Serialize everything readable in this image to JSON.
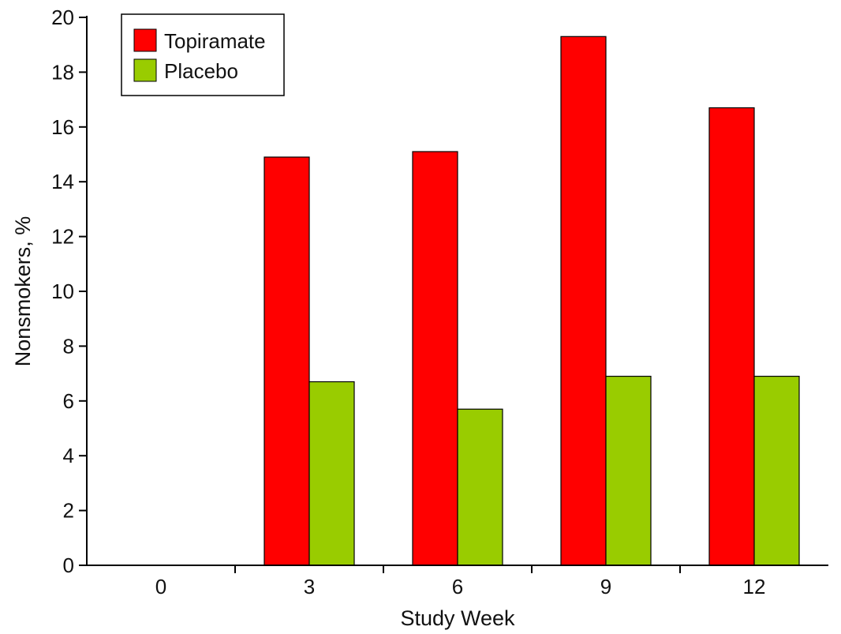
{
  "chart_data": {
    "type": "bar",
    "title": "",
    "xlabel": "Study Week",
    "ylabel": "Nonsmokers, %",
    "categories": [
      "0",
      "3",
      "6",
      "9",
      "12"
    ],
    "series": [
      {
        "name": "Topiramate",
        "color": "#ff0000",
        "values": [
          0,
          14.9,
          15.1,
          19.3,
          16.7
        ]
      },
      {
        "name": "Placebo",
        "color": "#99cc00",
        "values": [
          0,
          6.7,
          5.7,
          6.9,
          6.9
        ]
      }
    ],
    "ylim": [
      0,
      20
    ],
    "yticks": [
      "0",
      "2",
      "4",
      "6",
      "8",
      "10",
      "12",
      "14",
      "16",
      "18",
      "20"
    ],
    "grid": false,
    "legend_position": "top-left"
  }
}
